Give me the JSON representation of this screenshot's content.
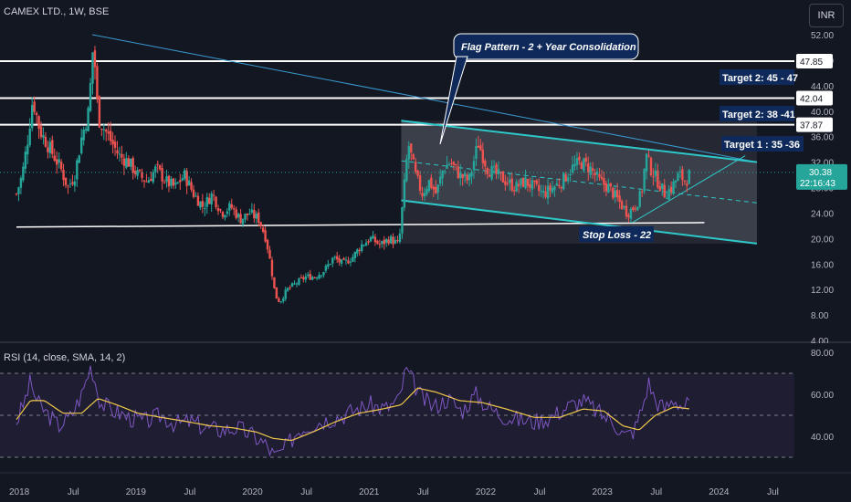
{
  "header": {
    "symbol_line": "CAMEX LTD., 1W, BSE"
  },
  "currency_label": "INR",
  "rsi_header": "RSI (14, close, SMA, 14, 2)",
  "colors": {
    "background": "#131722",
    "up": "#26a69a",
    "down": "#ef5350",
    "channel": "#2ec8c8",
    "resistance": "#ffffff",
    "label_bg": "#0f2a5a",
    "rsi_line": "#7e57c2",
    "rsi_ma": "#f0c84b",
    "price_tag": "#26a69a"
  },
  "chart_data": [
    {
      "type": "candlestick",
      "title": "CAMEX LTD., 1W, BSE",
      "x_ticks": [
        "2018",
        "Jul",
        "2019",
        "Jul",
        "2020",
        "Jul",
        "2021",
        "Jul",
        "2022",
        "Jul",
        "2023",
        "Jul",
        "2024",
        "Jul"
      ],
      "y_ticks": [
        "52.00",
        "48.00",
        "44.00",
        "40.00",
        "36.00",
        "32.00",
        "28.00",
        "24.00",
        "20.00",
        "16.00",
        "12.00",
        "8.00",
        "4.00"
      ],
      "ylim": [
        4,
        54
      ],
      "xlim": [
        2018.0,
        2024.75
      ],
      "price_path": [
        [
          2018.0,
          27
        ],
        [
          2018.05,
          30
        ],
        [
          2018.1,
          36
        ],
        [
          2018.14,
          42
        ],
        [
          2018.2,
          37
        ],
        [
          2018.26,
          35
        ],
        [
          2018.32,
          33
        ],
        [
          2018.38,
          31
        ],
        [
          2018.44,
          28
        ],
        [
          2018.5,
          30
        ],
        [
          2018.56,
          36
        ],
        [
          2018.62,
          40
        ],
        [
          2018.66,
          51
        ],
        [
          2018.7,
          39
        ],
        [
          2018.76,
          37
        ],
        [
          2018.82,
          35
        ],
        [
          2018.88,
          33
        ],
        [
          2018.96,
          32
        ],
        [
          2019.04,
          30
        ],
        [
          2019.12,
          29
        ],
        [
          2019.2,
          31
        ],
        [
          2019.28,
          29
        ],
        [
          2019.36,
          28
        ],
        [
          2019.44,
          30
        ],
        [
          2019.52,
          27
        ],
        [
          2019.6,
          25
        ],
        [
          2019.68,
          27
        ],
        [
          2019.76,
          24
        ],
        [
          2019.84,
          25
        ],
        [
          2019.92,
          23
        ],
        [
          2020.0,
          24
        ],
        [
          2020.08,
          23
        ],
        [
          2020.14,
          20
        ],
        [
          2020.18,
          16
        ],
        [
          2020.22,
          11
        ],
        [
          2020.26,
          10
        ],
        [
          2020.32,
          12
        ],
        [
          2020.4,
          13
        ],
        [
          2020.48,
          14
        ],
        [
          2020.56,
          14
        ],
        [
          2020.64,
          15
        ],
        [
          2020.72,
          17
        ],
        [
          2020.8,
          16
        ],
        [
          2020.88,
          17
        ],
        [
          2020.96,
          19
        ],
        [
          2021.04,
          20
        ],
        [
          2021.12,
          19
        ],
        [
          2021.2,
          20
        ],
        [
          2021.28,
          19
        ],
        [
          2021.32,
          27
        ],
        [
          2021.36,
          35
        ],
        [
          2021.42,
          30
        ],
        [
          2021.48,
          27
        ],
        [
          2021.54,
          29
        ],
        [
          2021.6,
          27
        ],
        [
          2021.66,
          31
        ],
        [
          2021.72,
          32
        ],
        [
          2021.8,
          30
        ],
        [
          2021.88,
          29
        ],
        [
          2021.96,
          35
        ],
        [
          2022.04,
          31
        ],
        [
          2022.12,
          30
        ],
        [
          2022.2,
          29
        ],
        [
          2022.28,
          28
        ],
        [
          2022.36,
          29
        ],
        [
          2022.44,
          28
        ],
        [
          2022.52,
          27
        ],
        [
          2022.6,
          28
        ],
        [
          2022.68,
          29
        ],
        [
          2022.76,
          31
        ],
        [
          2022.84,
          32
        ],
        [
          2022.92,
          31
        ],
        [
          2023.0,
          29
        ],
        [
          2023.08,
          28
        ],
        [
          2023.16,
          26
        ],
        [
          2023.24,
          24
        ],
        [
          2023.3,
          25
        ],
        [
          2023.36,
          27
        ],
        [
          2023.4,
          33
        ],
        [
          2023.44,
          31
        ],
        [
          2023.5,
          29
        ],
        [
          2023.56,
          27
        ],
        [
          2023.62,
          28
        ],
        [
          2023.68,
          30
        ],
        [
          2023.74,
          29
        ],
        [
          2023.78,
          30.38
        ]
      ],
      "last_price": "30.38",
      "countdown": "22:16:43",
      "resistance_levels": [
        {
          "price": 47.85,
          "label": "47.85"
        },
        {
          "price": 42.04,
          "label": "42.04"
        },
        {
          "price": 37.87,
          "label": "37.87"
        }
      ],
      "support_line": {
        "x": [
          2018.0,
          2023.9
        ],
        "y": [
          21.8,
          22.5
        ]
      },
      "long_trendline": {
        "x": [
          2018.65,
          2024.35
        ],
        "y": [
          52.0,
          32.0
        ]
      },
      "channel_upper": {
        "x": [
          2021.3,
          2024.35
        ],
        "y": [
          38.5,
          32.0
        ]
      },
      "channel_lower": {
        "x": [
          2021.3,
          2024.35
        ],
        "y": [
          26.0,
          19.2
        ]
      },
      "channel_mid": {
        "x": [
          2021.3,
          2024.35
        ],
        "y": [
          32.2,
          25.6
        ]
      },
      "flag_trend": {
        "x": [
          2023.28,
          2024.25
        ],
        "y": [
          22.5,
          33.0
        ]
      },
      "annotations": [
        {
          "text": "Flag Pattern - 2 + Year Consolidation"
        },
        {
          "text": "Target 2: 45 - 47"
        },
        {
          "text": "Target 2: 38 -41"
        },
        {
          "text": "Target 1 : 35 -36"
        },
        {
          "text": "Stop Loss - 22"
        }
      ]
    },
    {
      "type": "line",
      "title": "RSI (14, close, SMA, 14, 2)",
      "y_ticks": [
        "80.00",
        "60.00",
        "40.00"
      ],
      "ylim": [
        28,
        82
      ],
      "bands": [
        70,
        50,
        30
      ],
      "series": [
        {
          "values": [
            [
              2018.0,
              47
            ],
            [
              2018.06,
              55
            ],
            [
              2018.12,
              66
            ],
            [
              2018.18,
              56
            ],
            [
              2018.26,
              51
            ],
            [
              2018.36,
              45
            ],
            [
              2018.46,
              49
            ],
            [
              2018.56,
              60
            ],
            [
              2018.64,
              74
            ],
            [
              2018.72,
              56
            ],
            [
              2018.84,
              52
            ],
            [
              2018.96,
              49
            ],
            [
              2019.1,
              47
            ],
            [
              2019.24,
              50
            ],
            [
              2019.36,
              46
            ],
            [
              2019.5,
              47
            ],
            [
              2019.62,
              44
            ],
            [
              2019.76,
              43
            ],
            [
              2019.9,
              44
            ],
            [
              2020.04,
              40
            ],
            [
              2020.14,
              36
            ],
            [
              2020.22,
              30
            ],
            [
              2020.3,
              34
            ],
            [
              2020.42,
              43
            ],
            [
              2020.54,
              46
            ],
            [
              2020.66,
              48
            ],
            [
              2020.8,
              50
            ],
            [
              2020.92,
              53
            ],
            [
              2021.04,
              55
            ],
            [
              2021.16,
              53
            ],
            [
              2021.28,
              57
            ],
            [
              2021.34,
              72
            ],
            [
              2021.4,
              66
            ],
            [
              2021.48,
              58
            ],
            [
              2021.58,
              54
            ],
            [
              2021.7,
              58
            ],
            [
              2021.82,
              52
            ],
            [
              2021.94,
              60
            ],
            [
              2022.04,
              54
            ],
            [
              2022.16,
              50
            ],
            [
              2022.3,
              48
            ],
            [
              2022.44,
              47
            ],
            [
              2022.58,
              49
            ],
            [
              2022.72,
              54
            ],
            [
              2022.86,
              57
            ],
            [
              2023.0,
              51
            ],
            [
              2023.12,
              47
            ],
            [
              2023.22,
              40
            ],
            [
              2023.3,
              43
            ],
            [
              2023.38,
              56
            ],
            [
              2023.42,
              66
            ],
            [
              2023.48,
              57
            ],
            [
              2023.56,
              53
            ],
            [
              2023.64,
              58
            ],
            [
              2023.72,
              54
            ],
            [
              2023.78,
              56
            ]
          ]
        },
        {
          "values": [
            [
              2018.0,
              48
            ],
            [
              2018.12,
              57
            ],
            [
              2018.24,
              57
            ],
            [
              2018.4,
              51
            ],
            [
              2018.56,
              51
            ],
            [
              2018.7,
              58
            ],
            [
              2018.86,
              55
            ],
            [
              2019.04,
              51
            ],
            [
              2019.24,
              49
            ],
            [
              2019.46,
              47
            ],
            [
              2019.66,
              45
            ],
            [
              2019.86,
              44
            ],
            [
              2020.06,
              42
            ],
            [
              2020.2,
              39
            ],
            [
              2020.36,
              38
            ],
            [
              2020.54,
              42
            ],
            [
              2020.74,
              47
            ],
            [
              2020.94,
              51
            ],
            [
              2021.14,
              53
            ],
            [
              2021.3,
              55
            ],
            [
              2021.44,
              63
            ],
            [
              2021.6,
              61
            ],
            [
              2021.8,
              57
            ],
            [
              2022.0,
              56
            ],
            [
              2022.2,
              53
            ],
            [
              2022.44,
              49
            ],
            [
              2022.66,
              49
            ],
            [
              2022.86,
              53
            ],
            [
              2023.04,
              52
            ],
            [
              2023.2,
              45
            ],
            [
              2023.34,
              43
            ],
            [
              2023.48,
              50
            ],
            [
              2023.64,
              54
            ],
            [
              2023.78,
              53
            ]
          ]
        }
      ]
    }
  ]
}
